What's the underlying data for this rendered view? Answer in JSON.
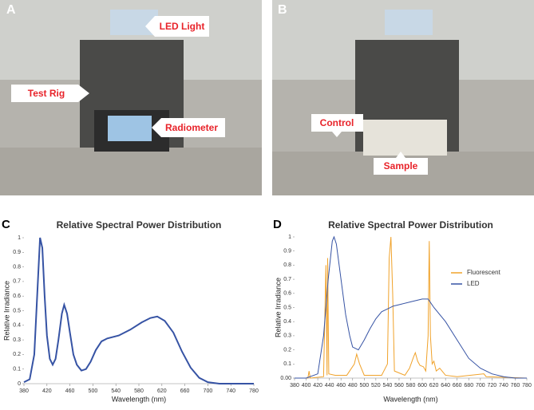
{
  "photos": [
    {
      "label": "A",
      "callouts": [
        "LED Light",
        "Test Rig",
        "Radiometer"
      ]
    },
    {
      "label": "B",
      "callouts": [
        "Control",
        "Sample"
      ]
    }
  ],
  "chart_data": [
    {
      "type": "line",
      "panel_label": "C",
      "title": "Relative Spectral Power Distribution",
      "xlabel": "Wavelength (nm)",
      "ylabel": "Relative Irradiance",
      "x": [
        380,
        390,
        398,
        403,
        408,
        412,
        416,
        420,
        425,
        430,
        435,
        440,
        446,
        450,
        455,
        460,
        466,
        472,
        480,
        488,
        496,
        505,
        515,
        525,
        545,
        565,
        585,
        600,
        612,
        625,
        640,
        655,
        670,
        685,
        700,
        720,
        780
      ],
      "values": [
        0.01,
        0.03,
        0.2,
        0.6,
        1.0,
        0.93,
        0.6,
        0.33,
        0.17,
        0.13,
        0.17,
        0.3,
        0.48,
        0.54,
        0.48,
        0.35,
        0.2,
        0.13,
        0.09,
        0.1,
        0.15,
        0.23,
        0.29,
        0.31,
        0.33,
        0.37,
        0.42,
        0.45,
        0.46,
        0.43,
        0.35,
        0.22,
        0.11,
        0.04,
        0.01,
        0,
        0
      ],
      "color": "#3653a4",
      "xlim": [
        380,
        780
      ],
      "xticks": [
        380,
        420,
        460,
        500,
        540,
        580,
        620,
        660,
        700,
        740,
        780
      ],
      "ylim": [
        0,
        1
      ],
      "yticks": [
        0,
        0.1,
        0.2,
        0.3,
        0.4,
        0.5,
        0.6,
        0.7,
        0.8,
        0.9,
        1
      ]
    },
    {
      "type": "line",
      "panel_label": "D",
      "title": "Relative Spectral Power Distribution",
      "xlabel": "Wavelength (nm)",
      "ylabel": "Relative Irradiance",
      "legend": "upper right",
      "series": [
        {
          "name": "Fluorescent",
          "color": "#f0a22a",
          "x": [
            380,
            403,
            405,
            407,
            430,
            434,
            436,
            437,
            439,
            450,
            470,
            483,
            487,
            492,
            500,
            530,
            540,
            543,
            546,
            549,
            552,
            570,
            578,
            585,
            588,
            592,
            596,
            602,
            606,
            610,
            612,
            614,
            617,
            620,
            624,
            630,
            640,
            660,
            706,
            710,
            780
          ],
          "values": [
            0,
            0,
            0.05,
            0,
            0.01,
            0.8,
            0.02,
            0.85,
            0.03,
            0.02,
            0.02,
            0.1,
            0.17,
            0.1,
            0.02,
            0.02,
            0.1,
            0.85,
            1.0,
            0.6,
            0.05,
            0.02,
            0.07,
            0.15,
            0.18,
            0.12,
            0.09,
            0.08,
            0.05,
            0.3,
            0.97,
            0.3,
            0.1,
            0.12,
            0.05,
            0.07,
            0.02,
            0.01,
            0.03,
            0.01,
            0
          ]
        },
        {
          "name": "LED",
          "color": "#3653a4",
          "x": [
            380,
            400,
            420,
            430,
            438,
            445,
            448,
            452,
            460,
            468,
            475,
            480,
            490,
            500,
            510,
            520,
            530,
            540,
            550,
            560,
            580,
            600,
            610,
            620,
            640,
            660,
            680,
            700,
            720,
            740,
            760,
            780
          ],
          "values": [
            0,
            0,
            0.03,
            0.3,
            0.7,
            0.97,
            1.0,
            0.95,
            0.7,
            0.45,
            0.3,
            0.22,
            0.2,
            0.27,
            0.35,
            0.42,
            0.47,
            0.49,
            0.51,
            0.52,
            0.54,
            0.56,
            0.56,
            0.5,
            0.4,
            0.27,
            0.14,
            0.07,
            0.03,
            0.01,
            0,
            0
          ]
        }
      ],
      "xlim": [
        380,
        780
      ],
      "xticks": [
        380,
        400,
        420,
        440,
        460,
        480,
        500,
        520,
        540,
        560,
        580,
        600,
        620,
        640,
        660,
        680,
        700,
        720,
        740,
        760,
        780
      ],
      "ylim": [
        0,
        1
      ],
      "yticks": [
        {
          "value": 0,
          "label": "0.00"
        },
        0.1,
        0.2,
        0.3,
        0.4,
        0.5,
        0.6,
        0.7,
        0.8,
        0.9,
        1
      ]
    }
  ]
}
